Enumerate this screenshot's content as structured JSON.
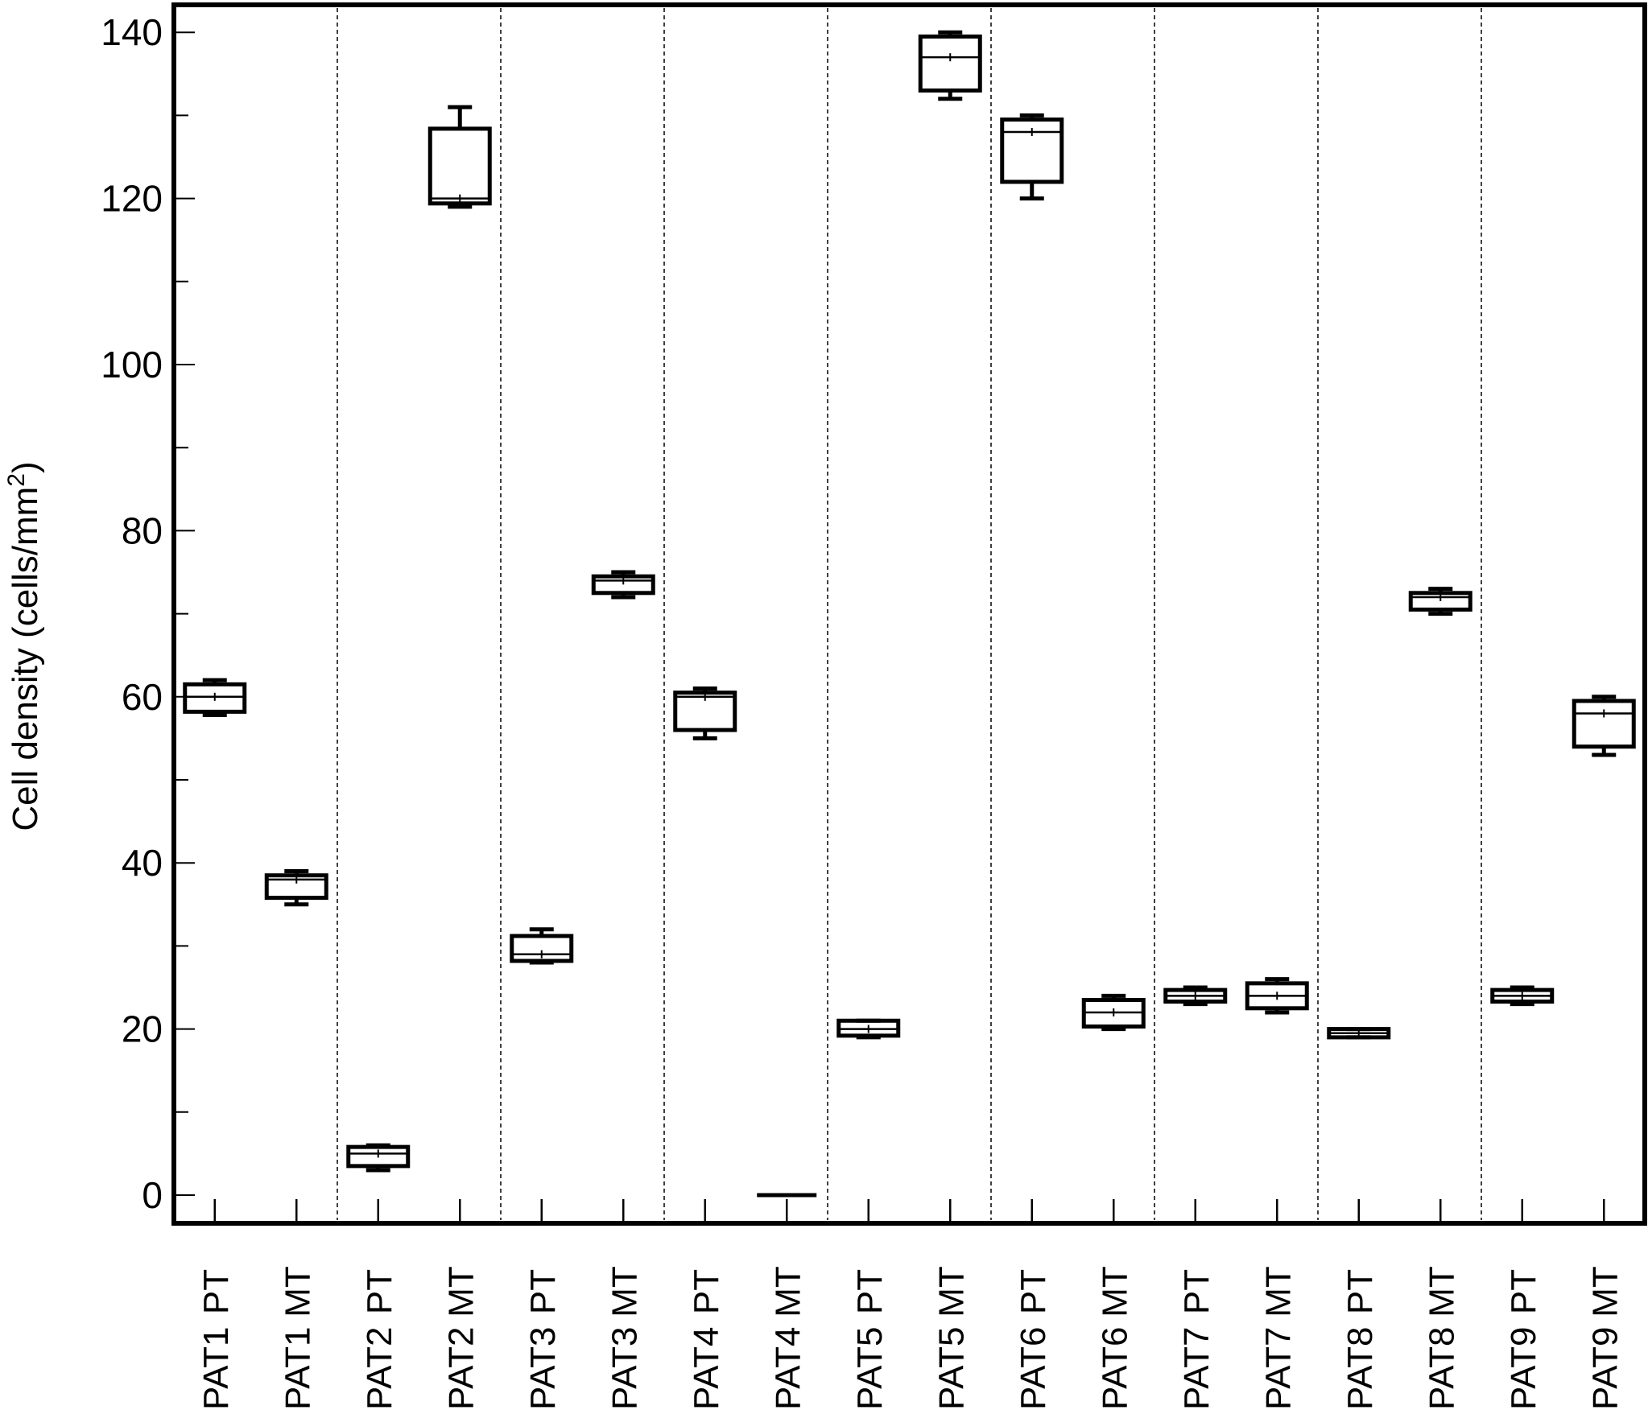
{
  "chart_data": {
    "type": "box",
    "title": "",
    "ylabel": "Cell density (cells/mm",
    "ylabel_sup": "2",
    "ylabel_close": ")",
    "ylim": [
      -4,
      142
    ],
    "yticks": [
      0,
      20,
      40,
      60,
      80,
      100,
      120,
      140
    ],
    "y_minor_step": 10,
    "grid": false,
    "legend": "none",
    "patient_groups": [
      "PAT1",
      "PAT2",
      "PAT3",
      "PAT4",
      "PAT5",
      "PAT6",
      "PAT7",
      "PAT8",
      "PAT9"
    ],
    "categories": [
      {
        "tissue": "PT",
        "patient": "PAT1"
      },
      {
        "tissue": "MT",
        "patient": "PAT1"
      },
      {
        "tissue": "PT",
        "patient": "PAT2"
      },
      {
        "tissue": "MT",
        "patient": "PAT2"
      },
      {
        "tissue": "PT",
        "patient": "PAT3"
      },
      {
        "tissue": "MT",
        "patient": "PAT3"
      },
      {
        "tissue": "PT",
        "patient": "PAT4"
      },
      {
        "tissue": "MT",
        "patient": "PAT4"
      },
      {
        "tissue": "PT",
        "patient": "PAT5"
      },
      {
        "tissue": "MT",
        "patient": "PAT5"
      },
      {
        "tissue": "PT",
        "patient": "PAT6"
      },
      {
        "tissue": "MT",
        "patient": "PAT6"
      },
      {
        "tissue": "PT",
        "patient": "PAT7"
      },
      {
        "tissue": "MT",
        "patient": "PAT7"
      },
      {
        "tissue": "PT",
        "patient": "PAT8"
      },
      {
        "tissue": "MT",
        "patient": "PAT8"
      },
      {
        "tissue": "PT",
        "patient": "PAT9"
      },
      {
        "tissue": "MT",
        "patient": "PAT9"
      }
    ],
    "boxes": [
      {
        "min": 57.8,
        "q1": 58.2,
        "median": 60,
        "q3": 61.5,
        "max": 62
      },
      {
        "min": 35,
        "q1": 35.8,
        "median": 38,
        "q3": 38.5,
        "max": 39
      },
      {
        "min": 3,
        "q1": 3.5,
        "median": 5,
        "q3": 5.8,
        "max": 6
      },
      {
        "min": 119,
        "q1": 119.4,
        "median": 120,
        "q3": 128.4,
        "max": 131
      },
      {
        "min": 28,
        "q1": 28.2,
        "median": 29,
        "q3": 31.2,
        "max": 32
      },
      {
        "min": 72,
        "q1": 72.5,
        "median": 74,
        "q3": 74.5,
        "max": 75
      },
      {
        "min": 55,
        "q1": 56,
        "median": 60,
        "q3": 60.5,
        "max": 61
      },
      {
        "min": 0,
        "q1": 0,
        "median": 0,
        "q3": 0,
        "max": 0
      },
      {
        "min": 19,
        "q1": 19.2,
        "median": 20,
        "q3": 21,
        "max": 21
      },
      {
        "min": 132,
        "q1": 133,
        "median": 137,
        "q3": 139.5,
        "max": 140
      },
      {
        "min": 120,
        "q1": 122,
        "median": 128,
        "q3": 129.5,
        "max": 130
      },
      {
        "min": 20,
        "q1": 20.3,
        "median": 22,
        "q3": 23.5,
        "max": 24
      },
      {
        "min": 23,
        "q1": 23.3,
        "median": 24,
        "q3": 24.7,
        "max": 25
      },
      {
        "min": 22,
        "q1": 22.5,
        "median": 24,
        "q3": 25.5,
        "max": 26
      },
      {
        "min": 19,
        "q1": 19,
        "median": 19.5,
        "q3": 20,
        "max": 20
      },
      {
        "min": 70,
        "q1": 70.5,
        "median": 72,
        "q3": 72.5,
        "max": 73
      },
      {
        "min": 23,
        "q1": 23.3,
        "median": 24,
        "q3": 24.7,
        "max": 25
      },
      {
        "min": 53,
        "q1": 54,
        "median": 58,
        "q3": 59.5,
        "max": 60
      }
    ]
  }
}
